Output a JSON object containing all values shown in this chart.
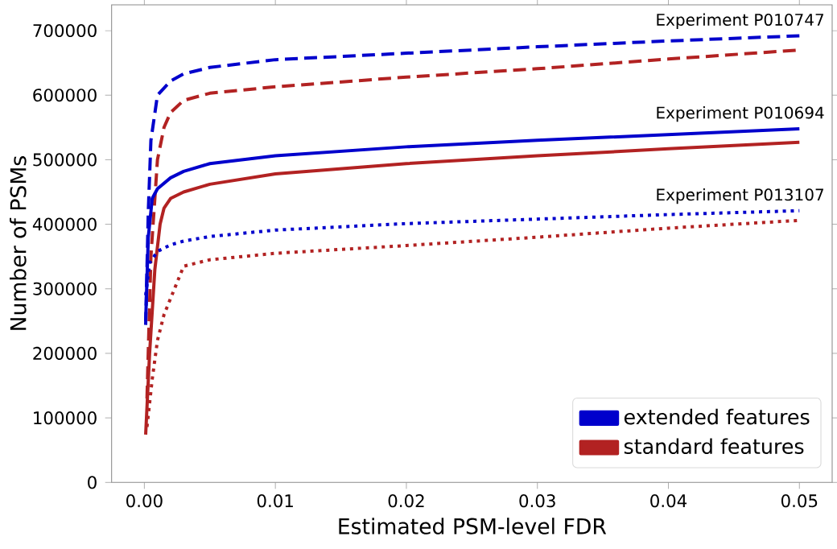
{
  "chart_data": {
    "type": "line",
    "xlabel": "Estimated PSM-level FDR",
    "ylabel": "Number of PSMs",
    "xlim": [
      -0.0025,
      0.0525
    ],
    "ylim": [
      0,
      740000
    ],
    "xticks": [
      {
        "value": 0,
        "label": "0.00"
      },
      {
        "value": 0.01,
        "label": "0.01"
      },
      {
        "value": 0.02,
        "label": "0.02"
      },
      {
        "value": 0.03,
        "label": "0.03"
      },
      {
        "value": 0.04,
        "label": "0.04"
      },
      {
        "value": 0.05,
        "label": "0.05"
      }
    ],
    "yticks": [
      0,
      100000,
      200000,
      300000,
      400000,
      500000,
      600000,
      700000
    ],
    "marker": "none",
    "grid": false,
    "legend": "bottom right",
    "series": [
      {
        "name": "extended features",
        "color": "#0000cc",
        "line_style": "dashed",
        "x": [
          0.0001,
          0.0003,
          0.0005,
          0.001,
          0.002,
          0.003,
          0.005,
          0.01,
          0.02,
          0.03,
          0.04,
          0.05
        ],
        "values": [
          244000,
          420000,
          530000,
          600000,
          622000,
          633000,
          643000,
          655000,
          665000,
          675000,
          684000,
          692000
        ]
      },
      {
        "name": "standard features",
        "color": "#b22222",
        "line_style": "dashed",
        "x": [
          0.0002,
          0.0005,
          0.001,
          0.0015,
          0.002,
          0.003,
          0.005,
          0.01,
          0.02,
          0.03,
          0.04,
          0.05
        ],
        "values": [
          130000,
          350000,
          500000,
          550000,
          573000,
          592000,
          603000,
          613000,
          628000,
          641000,
          656000,
          670000
        ]
      },
      {
        "color": "#0000cc",
        "line_style": "solid",
        "x": [
          0.0001,
          0.0003,
          0.0006,
          0.001,
          0.002,
          0.003,
          0.005,
          0.01,
          0.02,
          0.03,
          0.04,
          0.05
        ],
        "values": [
          250000,
          380000,
          440000,
          455000,
          472000,
          482000,
          494000,
          506000,
          520000,
          530000,
          539000,
          548000
        ]
      },
      {
        "color": "#b22222",
        "line_style": "solid",
        "x": [
          0.0001,
          0.0004,
          0.0008,
          0.0012,
          0.0015,
          0.002,
          0.003,
          0.005,
          0.01,
          0.02,
          0.03,
          0.04,
          0.05
        ],
        "values": [
          74000,
          200000,
          330000,
          400000,
          425000,
          440000,
          450000,
          462000,
          478000,
          494000,
          506000,
          517000,
          527000
        ]
      },
      {
        "color": "#0000cc",
        "line_style": "dotted",
        "x": [
          0.0001,
          0.0004,
          0.001,
          0.002,
          0.003,
          0.005,
          0.01,
          0.02,
          0.03,
          0.04,
          0.05
        ],
        "values": [
          290000,
          340000,
          358000,
          368000,
          374000,
          381000,
          391000,
          401000,
          408000,
          415000,
          421000
        ]
      },
      {
        "color": "#b22222",
        "line_style": "dotted",
        "x": [
          0.0002,
          0.0006,
          0.001,
          0.0015,
          0.002,
          0.003,
          0.005,
          0.01,
          0.02,
          0.03,
          0.04,
          0.05
        ],
        "values": [
          86000,
          160000,
          220000,
          260000,
          285000,
          335000,
          345000,
          355000,
          367000,
          380000,
          394000,
          406000
        ]
      }
    ],
    "annotations": [
      "Experiment P010747",
      "Experiment P010694",
      "Experiment P013107"
    ]
  }
}
